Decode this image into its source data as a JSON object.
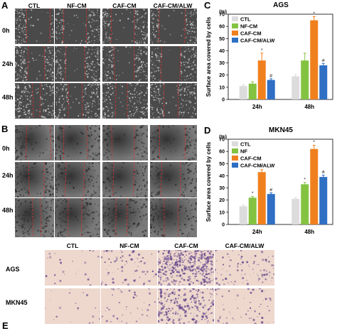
{
  "panels": {
    "a": {
      "letter": "A",
      "columns": [
        "CTL",
        "NF-CM",
        "CAF-CM",
        "CAF-CM/ALW"
      ],
      "rows": [
        "0h",
        "24h",
        "48h"
      ]
    },
    "b": {
      "letter": "B",
      "rows": [
        "0h",
        "24h",
        "48h"
      ]
    },
    "e": {
      "letter": "E",
      "columns": [
        "CTL",
        "NF-CM",
        "CAF-CM",
        "CAF-CM/ALW"
      ],
      "rows": [
        "AGS",
        "MKN45"
      ]
    }
  },
  "colors": {
    "ctl": "#dcdcdc",
    "nf": "#84c341",
    "caf": "#f0801e",
    "caf_alw": "#2f6fc4",
    "wound_line": "#d93030"
  },
  "chart_data": [
    {
      "panel": "C",
      "type": "bar",
      "title": "AGS",
      "categories": [
        "24h",
        "48h"
      ],
      "unit_label": "(%)",
      "ylabel": "Surface area covered by cells",
      "ylim": [
        0,
        70
      ],
      "yticks": [
        0,
        10,
        20,
        30,
        40,
        50,
        60,
        70
      ],
      "legend": "top-left",
      "series": [
        {
          "name": "CTL",
          "color_key": "ctl",
          "values": [
            11,
            19
          ],
          "errors": [
            1,
            1.5
          ],
          "marks": [
            "",
            ""
          ]
        },
        {
          "name": "NF-CM",
          "color_key": "nf",
          "values": [
            13,
            32
          ],
          "errors": [
            1.5,
            6
          ],
          "marks": [
            "",
            ""
          ]
        },
        {
          "name": "CAF-CM",
          "color_key": "caf",
          "values": [
            32,
            65
          ],
          "errors": [
            6,
            3
          ],
          "marks": [
            "*",
            "*"
          ]
        },
        {
          "name": "CAF-CM/ALW",
          "color_key": "caf_alw",
          "values": [
            16,
            28
          ],
          "errors": [
            1,
            1.5
          ],
          "marks": [
            "#",
            "#"
          ]
        }
      ]
    },
    {
      "panel": "D",
      "type": "bar",
      "title": "MKN45",
      "categories": [
        "24h",
        "48h"
      ],
      "unit_label": "(%)",
      "ylabel": "Surface area covered by cells",
      "ylim": [
        0,
        70
      ],
      "yticks": [
        0,
        10,
        20,
        30,
        40,
        50,
        60,
        70
      ],
      "legend": "top-left",
      "series": [
        {
          "name": "CTL",
          "color_key": "ctl",
          "values": [
            15,
            21
          ],
          "errors": [
            1,
            1
          ],
          "marks": [
            "",
            ""
          ]
        },
        {
          "name": "NF",
          "color_key": "nf",
          "values": [
            22,
            33
          ],
          "errors": [
            1,
            1.5
          ],
          "marks": [
            "*",
            "*"
          ]
        },
        {
          "name": "CAF-CM",
          "color_key": "caf",
          "values": [
            43,
            62
          ],
          "errors": [
            2,
            3
          ],
          "marks": [
            "*",
            "*"
          ]
        },
        {
          "name": "CAF-CM/ALW",
          "color_key": "caf_alw",
          "values": [
            25,
            39
          ],
          "errors": [
            1,
            1.5
          ],
          "marks": [
            "#",
            "#"
          ]
        }
      ]
    }
  ]
}
